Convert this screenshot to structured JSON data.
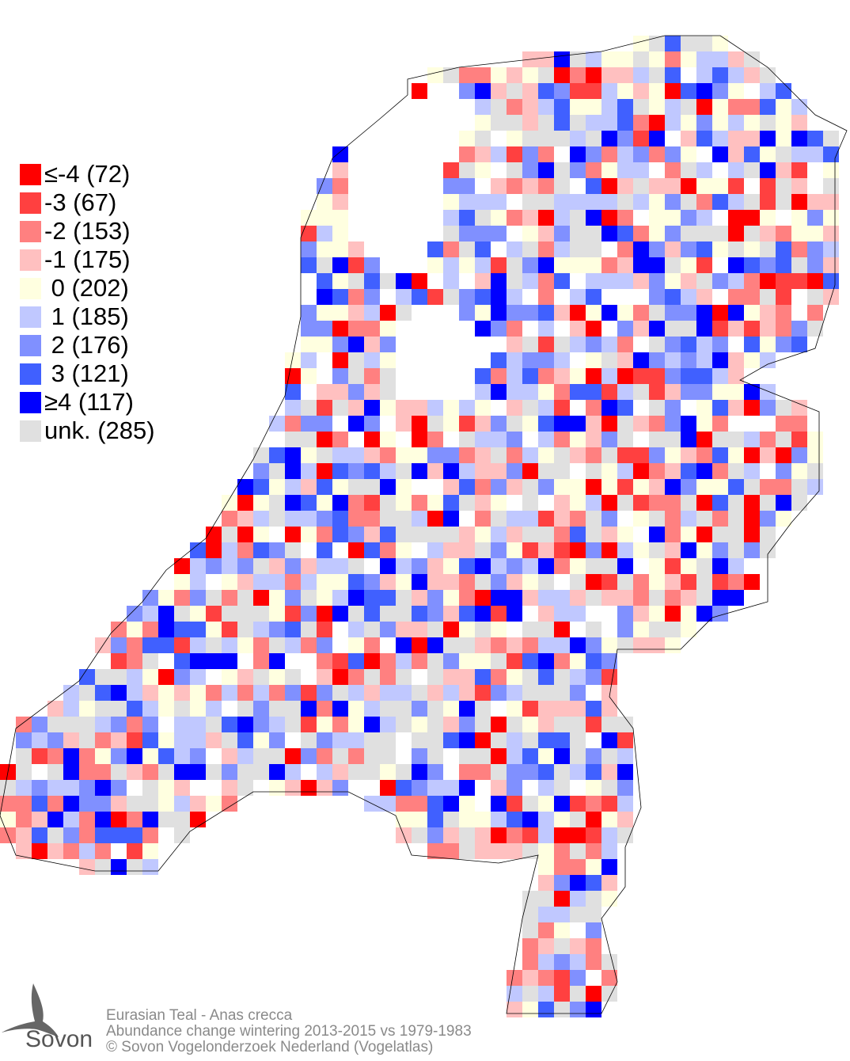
{
  "legend": {
    "items": [
      {
        "label": "≤-4 (72)",
        "value": "≤-4",
        "count": 72,
        "color": "#ff0000"
      },
      {
        "label": "-3 (67)",
        "value": "-3",
        "count": 67,
        "color": "#ff4040"
      },
      {
        "label": "-2 (153)",
        "value": "-2",
        "count": 153,
        "color": "#ff8080"
      },
      {
        "label": "-1 (175)",
        "value": "-1",
        "count": 175,
        "color": "#ffc0c0"
      },
      {
        "label": " 0 (202)",
        "value": "0",
        "count": 202,
        "color": "#ffffe0"
      },
      {
        "label": " 1 (185)",
        "value": "1",
        "count": 185,
        "color": "#c0c8ff"
      },
      {
        "label": " 2 (176)",
        "value": "2",
        "count": 176,
        "color": "#8090ff"
      },
      {
        "label": " 3 (121)",
        "value": "3",
        "count": 121,
        "color": "#4060ff"
      },
      {
        "label": "≥4 (117)",
        "value": "≥4",
        "count": 117,
        "color": "#0000ff"
      },
      {
        "label": "unk. (285)",
        "value": "unk.",
        "count": 285,
        "color": "#e0e0e0"
      }
    ]
  },
  "footer": {
    "species": "Eurasian Teal - Anas crecca",
    "subtitle": "Abundance change wintering  2013-2015 vs 1979-1983",
    "copyright": "© Sovon Vogelonderzoek Nederland (Vogelatlas)"
  },
  "logo": {
    "text": "Sovon",
    "icon": "swallow-icon"
  }
}
